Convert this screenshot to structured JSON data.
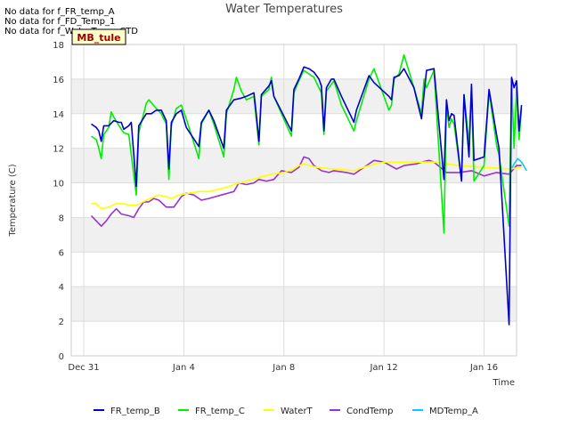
{
  "messages": [
    "No data for f_FR_temp_A",
    "No data for f_FD_Temp_1",
    "No data for f_WaterTemp_CTD"
  ],
  "site_badge": "MB_tule",
  "chart_data": {
    "type": "line",
    "title": "Water Temperatures",
    "xlabel": "Time",
    "ylabel": "Temperature (C)",
    "ylim": [
      0,
      18
    ],
    "yticks": [
      0,
      2,
      4,
      6,
      8,
      10,
      12,
      14,
      16,
      18
    ],
    "xlim_days": [
      -0.5,
      17.3
    ],
    "xticks": [
      {
        "day": 0,
        "label": "Dec 31"
      },
      {
        "day": 4,
        "label": "Jan 4"
      },
      {
        "day": 8,
        "label": "Jan 8"
      },
      {
        "day": 12,
        "label": "Jan 12"
      },
      {
        "day": 16,
        "label": "Jan 16"
      }
    ],
    "grid": true,
    "banded_background": true,
    "legend_position": "bottom",
    "series": [
      {
        "name": "FR_temp_B",
        "color": "#0000cc",
        "points": [
          [
            0.3,
            13.4
          ],
          [
            0.5,
            13.2
          ],
          [
            0.6,
            13.0
          ],
          [
            0.7,
            12.4
          ],
          [
            0.8,
            13.3
          ],
          [
            1.0,
            13.3
          ],
          [
            1.2,
            13.6
          ],
          [
            1.4,
            13.5
          ],
          [
            1.5,
            13.5
          ],
          [
            1.6,
            13.1
          ],
          [
            1.8,
            13.3
          ],
          [
            1.9,
            13.5
          ],
          [
            2.1,
            9.8
          ],
          [
            2.2,
            13.3
          ],
          [
            2.5,
            14.0
          ],
          [
            2.7,
            14.0
          ],
          [
            2.9,
            14.2
          ],
          [
            3.1,
            14.2
          ],
          [
            3.3,
            13.6
          ],
          [
            3.4,
            10.8
          ],
          [
            3.5,
            13.5
          ],
          [
            3.7,
            14.0
          ],
          [
            3.9,
            14.2
          ],
          [
            4.1,
            13.2
          ],
          [
            4.6,
            12.1
          ],
          [
            4.7,
            13.5
          ],
          [
            5.0,
            14.2
          ],
          [
            5.2,
            13.6
          ],
          [
            5.6,
            12.0
          ],
          [
            5.7,
            14.2
          ],
          [
            6.0,
            14.8
          ],
          [
            6.3,
            14.9
          ],
          [
            6.5,
            15.0
          ],
          [
            6.8,
            15.2
          ],
          [
            6.9,
            13.9
          ],
          [
            7.0,
            12.4
          ],
          [
            7.1,
            15.1
          ],
          [
            7.4,
            15.6
          ],
          [
            7.5,
            15.9
          ],
          [
            7.6,
            15.0
          ],
          [
            8.3,
            13.0
          ],
          [
            8.4,
            15.4
          ],
          [
            8.6,
            16.0
          ],
          [
            8.8,
            16.7
          ],
          [
            9.0,
            16.6
          ],
          [
            9.2,
            16.4
          ],
          [
            9.4,
            16.0
          ],
          [
            9.5,
            15.6
          ],
          [
            9.6,
            13.0
          ],
          [
            9.7,
            15.5
          ],
          [
            9.9,
            16.0
          ],
          [
            10.0,
            16.0
          ],
          [
            10.3,
            15.0
          ],
          [
            10.8,
            13.5
          ],
          [
            10.9,
            14.2
          ],
          [
            11.4,
            16.2
          ],
          [
            11.6,
            15.8
          ],
          [
            12.2,
            15.0
          ],
          [
            12.3,
            14.8
          ],
          [
            12.4,
            16.1
          ],
          [
            12.6,
            16.2
          ],
          [
            12.8,
            16.6
          ],
          [
            13.2,
            15.5
          ],
          [
            13.3,
            14.9
          ],
          [
            13.5,
            13.7
          ],
          [
            13.7,
            16.5
          ],
          [
            14.0,
            16.6
          ],
          [
            14.4,
            10.2
          ],
          [
            14.5,
            14.8
          ],
          [
            14.6,
            13.6
          ],
          [
            14.7,
            14.0
          ],
          [
            14.8,
            13.9
          ],
          [
            15.1,
            10.1
          ],
          [
            15.2,
            15.1
          ],
          [
            15.4,
            11.5
          ],
          [
            15.5,
            15.7
          ],
          [
            15.6,
            11.3
          ],
          [
            16.0,
            11.5
          ],
          [
            16.2,
            15.4
          ],
          [
            16.5,
            12.8
          ],
          [
            16.6,
            12.0
          ],
          [
            17.0,
            1.8
          ],
          [
            17.1,
            16.1
          ],
          [
            17.2,
            15.5
          ],
          [
            17.3,
            15.9
          ],
          [
            17.4,
            13.0
          ],
          [
            17.5,
            14.5
          ]
        ]
      },
      {
        "name": "FR_temp_C",
        "color": "#00ee00",
        "points": [
          [
            0.3,
            12.7
          ],
          [
            0.5,
            12.5
          ],
          [
            0.6,
            12.0
          ],
          [
            0.7,
            11.4
          ],
          [
            0.8,
            12.8
          ],
          [
            1.0,
            13.2
          ],
          [
            1.1,
            14.1
          ],
          [
            1.2,
            13.8
          ],
          [
            1.5,
            13.1
          ],
          [
            1.6,
            12.9
          ],
          [
            1.8,
            12.8
          ],
          [
            2.1,
            9.3
          ],
          [
            2.2,
            12.9
          ],
          [
            2.5,
            14.6
          ],
          [
            2.6,
            14.8
          ],
          [
            2.9,
            14.3
          ],
          [
            3.1,
            14.0
          ],
          [
            3.3,
            13.4
          ],
          [
            3.4,
            10.2
          ],
          [
            3.5,
            13.3
          ],
          [
            3.7,
            14.3
          ],
          [
            3.9,
            14.5
          ],
          [
            4.1,
            13.7
          ],
          [
            4.6,
            11.4
          ],
          [
            4.7,
            13.4
          ],
          [
            5.0,
            14.2
          ],
          [
            5.2,
            13.4
          ],
          [
            5.6,
            11.5
          ],
          [
            5.7,
            14.0
          ],
          [
            6.0,
            15.4
          ],
          [
            6.1,
            16.1
          ],
          [
            6.3,
            15.3
          ],
          [
            6.5,
            14.8
          ],
          [
            6.8,
            15.0
          ],
          [
            6.9,
            13.6
          ],
          [
            7.0,
            12.2
          ],
          [
            7.1,
            15.0
          ],
          [
            7.4,
            15.4
          ],
          [
            7.5,
            16.1
          ],
          [
            7.6,
            15.0
          ],
          [
            8.3,
            12.7
          ],
          [
            8.4,
            15.2
          ],
          [
            8.6,
            15.9
          ],
          [
            8.8,
            16.5
          ],
          [
            9.0,
            16.3
          ],
          [
            9.2,
            16.1
          ],
          [
            9.4,
            15.5
          ],
          [
            9.5,
            15.2
          ],
          [
            9.6,
            12.8
          ],
          [
            9.7,
            15.3
          ],
          [
            10.0,
            15.9
          ],
          [
            10.3,
            14.5
          ],
          [
            10.8,
            13.0
          ],
          [
            10.9,
            13.6
          ],
          [
            11.4,
            16.0
          ],
          [
            11.6,
            16.6
          ],
          [
            12.2,
            14.2
          ],
          [
            12.3,
            14.5
          ],
          [
            12.4,
            16.0
          ],
          [
            12.6,
            16.3
          ],
          [
            12.8,
            17.4
          ],
          [
            13.2,
            15.5
          ],
          [
            13.3,
            15.0
          ],
          [
            13.5,
            14.0
          ],
          [
            13.6,
            16.0
          ],
          [
            13.7,
            15.5
          ],
          [
            14.0,
            16.5
          ],
          [
            14.4,
            7.1
          ],
          [
            14.5,
            14.5
          ],
          [
            14.6,
            13.2
          ],
          [
            14.7,
            13.7
          ],
          [
            14.8,
            13.4
          ],
          [
            15.1,
            10.2
          ],
          [
            15.2,
            15.1
          ],
          [
            15.4,
            12.3
          ],
          [
            15.5,
            15.5
          ],
          [
            15.6,
            10.1
          ],
          [
            16.0,
            11.0
          ],
          [
            16.2,
            15.3
          ],
          [
            16.5,
            12.2
          ],
          [
            16.6,
            11.6
          ],
          [
            17.0,
            7.5
          ],
          [
            17.1,
            16.0
          ],
          [
            17.2,
            12.0
          ],
          [
            17.3,
            15.5
          ],
          [
            17.4,
            12.5
          ],
          [
            17.5,
            14.3
          ]
        ]
      },
      {
        "name": "WaterT",
        "color": "#ffff00",
        "points": [
          [
            0.3,
            8.8
          ],
          [
            0.5,
            8.8
          ],
          [
            0.7,
            8.5
          ],
          [
            1.0,
            8.6
          ],
          [
            1.3,
            8.8
          ],
          [
            1.6,
            8.8
          ],
          [
            1.8,
            8.7
          ],
          [
            2.1,
            8.7
          ],
          [
            2.5,
            9.0
          ],
          [
            3.0,
            9.3
          ],
          [
            3.3,
            9.2
          ],
          [
            3.5,
            9.1
          ],
          [
            3.8,
            9.3
          ],
          [
            4.2,
            9.4
          ],
          [
            4.6,
            9.5
          ],
          [
            5.0,
            9.5
          ],
          [
            5.6,
            9.7
          ],
          [
            6.0,
            9.9
          ],
          [
            6.5,
            10.1
          ],
          [
            7.0,
            10.3
          ],
          [
            7.5,
            10.5
          ],
          [
            8.0,
            10.6
          ],
          [
            8.4,
            10.8
          ],
          [
            8.6,
            11.0
          ],
          [
            8.8,
            11.1
          ],
          [
            9.3,
            10.9
          ],
          [
            10.0,
            10.8
          ],
          [
            10.8,
            10.7
          ],
          [
            11.4,
            11.0
          ],
          [
            12.0,
            11.2
          ],
          [
            13.0,
            11.2
          ],
          [
            14.0,
            11.2
          ],
          [
            15.0,
            11.0
          ],
          [
            16.0,
            10.9
          ],
          [
            17.0,
            10.8
          ],
          [
            17.5,
            10.9
          ]
        ]
      },
      {
        "name": "CondTemp",
        "color": "#9933cc",
        "points": [
          [
            0.3,
            8.1
          ],
          [
            0.5,
            7.8
          ],
          [
            0.7,
            7.5
          ],
          [
            0.9,
            7.8
          ],
          [
            1.1,
            8.2
          ],
          [
            1.3,
            8.5
          ],
          [
            1.5,
            8.2
          ],
          [
            1.8,
            8.1
          ],
          [
            2.0,
            8.0
          ],
          [
            2.2,
            8.5
          ],
          [
            2.4,
            8.9
          ],
          [
            2.6,
            8.9
          ],
          [
            2.8,
            9.1
          ],
          [
            3.0,
            9.0
          ],
          [
            3.3,
            8.6
          ],
          [
            3.6,
            8.6
          ],
          [
            3.9,
            9.2
          ],
          [
            4.1,
            9.4
          ],
          [
            4.4,
            9.3
          ],
          [
            4.7,
            9.0
          ],
          [
            5.0,
            9.1
          ],
          [
            5.5,
            9.3
          ],
          [
            6.0,
            9.5
          ],
          [
            6.2,
            10.0
          ],
          [
            6.5,
            9.9
          ],
          [
            6.8,
            10.0
          ],
          [
            7.0,
            10.2
          ],
          [
            7.3,
            10.1
          ],
          [
            7.6,
            10.2
          ],
          [
            7.9,
            10.7
          ],
          [
            8.3,
            10.6
          ],
          [
            8.6,
            10.9
          ],
          [
            8.8,
            11.5
          ],
          [
            9.0,
            11.4
          ],
          [
            9.2,
            11.0
          ],
          [
            9.5,
            10.7
          ],
          [
            9.8,
            10.6
          ],
          [
            10.0,
            10.7
          ],
          [
            10.5,
            10.6
          ],
          [
            10.8,
            10.5
          ],
          [
            11.2,
            10.9
          ],
          [
            11.6,
            11.3
          ],
          [
            12.0,
            11.2
          ],
          [
            12.5,
            10.8
          ],
          [
            12.8,
            11.0
          ],
          [
            13.3,
            11.1
          ],
          [
            13.5,
            11.2
          ],
          [
            13.8,
            11.3
          ],
          [
            14.0,
            11.2
          ],
          [
            14.5,
            10.6
          ],
          [
            15.0,
            10.6
          ],
          [
            15.5,
            10.7
          ],
          [
            16.0,
            10.4
          ],
          [
            16.5,
            10.6
          ],
          [
            17.0,
            10.5
          ],
          [
            17.3,
            11.0
          ],
          [
            17.5,
            11.0
          ]
        ]
      },
      {
        "name": "MDTemp_A",
        "color": "#00ccff",
        "points": [
          [
            17.1,
            10.8
          ],
          [
            17.2,
            11.1
          ],
          [
            17.35,
            11.4
          ],
          [
            17.5,
            11.2
          ],
          [
            17.7,
            10.7
          ]
        ]
      }
    ]
  }
}
